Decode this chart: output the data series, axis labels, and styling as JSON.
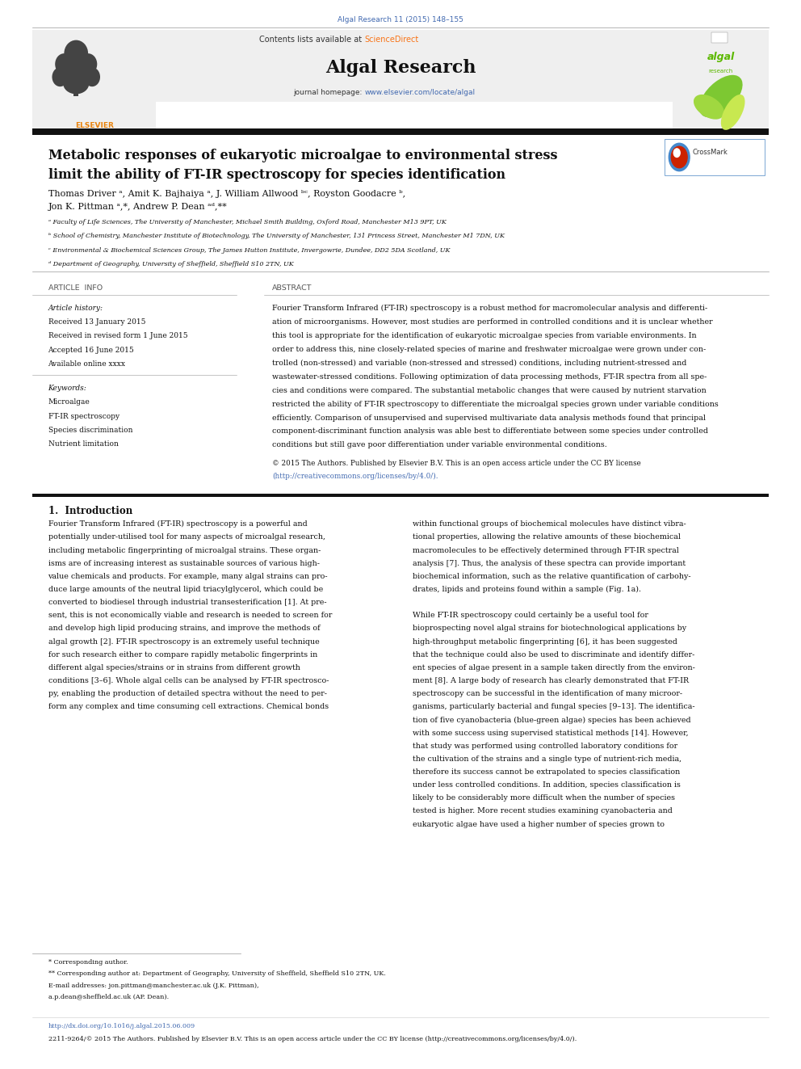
{
  "page_width": 9.92,
  "page_height": 13.23,
  "background_color": "#ffffff",
  "top_citation": "Algal Research 11 (2015) 148–155",
  "top_citation_color": "#4169b0",
  "journal_name": "Algal Research",
  "science_direct_color": "#f97316",
  "journal_homepage_url": "www.elsevier.com/locate/algal",
  "journal_homepage_url_color": "#4169b0",
  "header_bg": "#f0f0f0",
  "article_title_line1": "Metabolic responses of eukaryotic microalgae to environmental stress",
  "article_title_line2": "limit the ability of FT-IR spectroscopy for species identification",
  "affil_a": "ᵃ Faculty of Life Sciences, The University of Manchester, Michael Smith Building, Oxford Road, Manchester M13 9PT, UK",
  "affil_b": "ᵇ School of Chemistry, Manchester Institute of Biotechnology, The University of Manchester, 131 Princess Street, Manchester M1 7DN, UK",
  "affil_c": "ᶜ Environmental & Biochemical Sciences Group, The James Hutton Institute, Invergowrie, Dundee, DD2 5DA Scotland, UK",
  "affil_d": "ᵈ Department of Geography, University of Sheffield, Sheffield S10 2TN, UK",
  "article_info_label": "ARTICLE  INFO",
  "abstract_label": "ABSTRACT",
  "article_history_label": "Article history:",
  "received1": "Received 13 January 2015",
  "received2": "Received in revised form 1 June 2015",
  "accepted": "Accepted 16 June 2015",
  "available": "Available online xxxx",
  "keywords_label": "Keywords:",
  "keywords": [
    "Microalgae",
    "FT-IR spectroscopy",
    "Species discrimination",
    "Nutrient limitation"
  ],
  "section1_title": "1.  Introduction",
  "footnote1": "* Corresponding author.",
  "footnote2": "** Corresponding author at: Department of Geography, University of Sheffield, Sheffield S10 2TN, UK.",
  "footnote3": "E-mail addresses: jon.pittman@manchester.ac.uk (J.K. Pittman),",
  "footnote4": "a.p.dean@sheffield.ac.uk (AP. Dean).",
  "doi_line": "http://dx.doi.org/10.1016/j.algal.2015.06.009",
  "copyright_line": "2211-9264/© 2015 The Authors. Published by Elsevier B.V. This is an open access article under the CC BY license (http://creativecommons.org/licenses/by/4.0/).",
  "link_color": "#4169b0",
  "text_color": "#1a1a1a",
  "abstract_lines": [
    "Fourier Transform Infrared (FT-IR) spectroscopy is a robust method for macromolecular analysis and differenti-",
    "ation of microorganisms. However, most studies are performed in controlled conditions and it is unclear whether",
    "this tool is appropriate for the identification of eukaryotic microalgae species from variable environments. In",
    "order to address this, nine closely-related species of marine and freshwater microalgae were grown under con-",
    "trolled (non-stressed) and variable (non-stressed and stressed) conditions, including nutrient-stressed and",
    "wastewater-stressed conditions. Following optimization of data processing methods, FT-IR spectra from all spe-",
    "cies and conditions were compared. The substantial metabolic changes that were caused by nutrient starvation",
    "restricted the ability of FT-IR spectroscopy to differentiate the microalgal species grown under variable conditions",
    "efficiently. Comparison of unsupervised and supervised multivariate data analysis methods found that principal",
    "component-discriminant function analysis was able best to differentiate between some species under controlled",
    "conditions but still gave poor differentiation under variable environmental conditions."
  ],
  "intro_col1_lines": [
    "Fourier Transform Infrared (FT-IR) spectroscopy is a powerful and",
    "potentially under-utilised tool for many aspects of microalgal research,",
    "including metabolic fingerprinting of microalgal strains. These organ-",
    "isms are of increasing interest as sustainable sources of various high-",
    "value chemicals and products. For example, many algal strains can pro-",
    "duce large amounts of the neutral lipid triacylglycerol, which could be",
    "converted to biodiesel through industrial transesterification [1]. At pre-",
    "sent, this is not economically viable and research is needed to screen for",
    "and develop high lipid producing strains, and improve the methods of",
    "algal growth [2]. FT-IR spectroscopy is an extremely useful technique",
    "for such research either to compare rapidly metabolic fingerprints in",
    "different algal species/strains or in strains from different growth",
    "conditions [3–6]. Whole algal cells can be analysed by FT-IR spectrosco-",
    "py, enabling the production of detailed spectra without the need to per-",
    "form any complex and time consuming cell extractions. Chemical bonds"
  ],
  "intro_col2_lines": [
    "within functional groups of biochemical molecules have distinct vibra-",
    "tional properties, allowing the relative amounts of these biochemical",
    "macromolecules to be effectively determined through FT-IR spectral",
    "analysis [7]. Thus, the analysis of these spectra can provide important",
    "biochemical information, such as the relative quantification of carbohy-",
    "drates, lipids and proteins found within a sample (Fig. 1a).",
    "",
    "While FT-IR spectroscopy could certainly be a useful tool for",
    "bioprospecting novel algal strains for biotechnological applications by",
    "high-throughput metabolic fingerprinting [6], it has been suggested",
    "that the technique could also be used to discriminate and identify differ-",
    "ent species of algae present in a sample taken directly from the environ-",
    "ment [8]. A large body of research has clearly demonstrated that FT-IR",
    "spectroscopy can be successful in the identification of many microor-",
    "ganisms, particularly bacterial and fungal species [9–13]. The identifica-",
    "tion of five cyanobacteria (blue-green algae) species has been achieved",
    "with some success using supervised statistical methods [14]. However,",
    "that study was performed using controlled laboratory conditions for",
    "the cultivation of the strains and a single type of nutrient-rich media,",
    "therefore its success cannot be extrapolated to species classification",
    "under less controlled conditions. In addition, species classification is",
    "likely to be considerably more difficult when the number of species",
    "tested is higher. More recent studies examining cyanobacteria and",
    "eukaryotic algae have used a higher number of species grown to"
  ]
}
